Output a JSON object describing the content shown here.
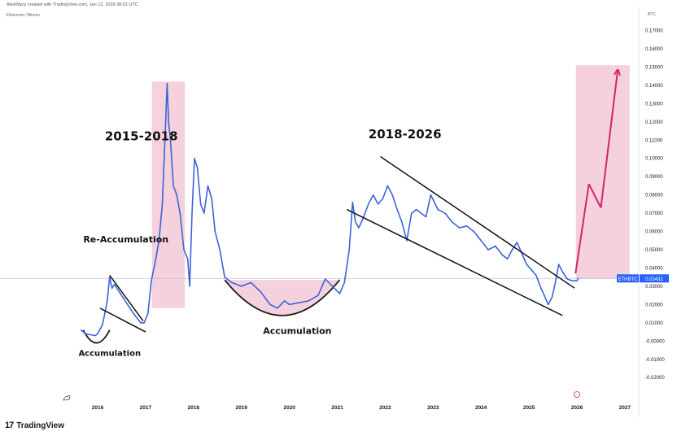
{
  "header": {
    "credit": "AlexWacy created with TradingView.com, Jan 12, 2026 08:01 UTC",
    "symbol": "Ethereum / Bitcoin",
    "currency": "BTC"
  },
  "footer": {
    "brand": "TradingView",
    "logo_icon": "tradingview-logo-icon"
  },
  "chart_data": {
    "type": "line",
    "title": "",
    "xlabel": "",
    "ylabel": "",
    "xlim": [
      2015.4,
      2027.3
    ],
    "ylim": [
      -0.02,
      0.18
    ],
    "grid": false,
    "x_ticks": [
      "2016",
      "2017",
      "2018",
      "2019",
      "2020",
      "2021",
      "2022",
      "2023",
      "2024",
      "2025",
      "2026",
      "2027"
    ],
    "y_ticks": [
      "0.17000",
      "0.16000",
      "0.15000",
      "0.14000",
      "0.13000",
      "0.12000",
      "0.11000",
      "0.10000",
      "0.09000",
      "0.08000",
      "0.07000",
      "0.06000",
      "0.05000",
      "0.04000",
      "0.03000",
      "0.02000",
      "0.01000",
      "-0.00000",
      "-0.01000",
      "-0.02000"
    ],
    "series": [
      {
        "color": "#3c63d8",
        "x": [
          2015.65,
          2015.75,
          2015.85,
          2015.95,
          2016.0,
          2016.1,
          2016.15,
          2016.2,
          2016.25,
          2016.3,
          2016.35,
          2016.45,
          2016.6,
          2016.75,
          2016.9,
          2016.97,
          2017.05,
          2017.12,
          2017.2,
          2017.28,
          2017.35,
          2017.42,
          2017.45,
          2017.48,
          2017.52,
          2017.58,
          2017.65,
          2017.72,
          2017.8,
          2017.88,
          2017.92,
          2017.97,
          2018.02,
          2018.08,
          2018.15,
          2018.22,
          2018.3,
          2018.38,
          2018.45,
          2018.55,
          2018.65,
          2018.8,
          2019.0,
          2019.2,
          2019.4,
          2019.6,
          2019.75,
          2019.9,
          2020.0,
          2020.2,
          2020.4,
          2020.6,
          2020.75,
          2020.9,
          2021.05,
          2021.15,
          2021.25,
          2021.32,
          2021.38,
          2021.45,
          2021.55,
          2021.65,
          2021.75,
          2021.85,
          2021.95,
          2022.05,
          2022.15,
          2022.25,
          2022.35,
          2022.45,
          2022.55,
          2022.65,
          2022.75,
          2022.85,
          2022.95,
          2023.1,
          2023.25,
          2023.4,
          2023.55,
          2023.7,
          2023.85,
          2024.0,
          2024.15,
          2024.3,
          2024.45,
          2024.55,
          2024.65,
          2024.75,
          2024.85,
          2024.95,
          2025.05,
          2025.15,
          2025.25,
          2025.32,
          2025.4,
          2025.48,
          2025.55,
          2025.62,
          2025.7,
          2025.8,
          2025.9,
          2026.0,
          2026.03
        ],
        "y": [
          0.006,
          0.004,
          0.0035,
          0.003,
          0.004,
          0.009,
          0.015,
          0.022,
          0.035,
          0.029,
          0.031,
          0.027,
          0.021,
          0.015,
          0.01,
          0.01,
          0.015,
          0.033,
          0.043,
          0.055,
          0.075,
          0.12,
          0.141,
          0.12,
          0.11,
          0.085,
          0.08,
          0.07,
          0.05,
          0.045,
          0.03,
          0.07,
          0.1,
          0.095,
          0.075,
          0.07,
          0.085,
          0.078,
          0.06,
          0.05,
          0.035,
          0.032,
          0.03,
          0.032,
          0.027,
          0.02,
          0.018,
          0.022,
          0.02,
          0.021,
          0.022,
          0.025,
          0.034,
          0.03,
          0.026,
          0.032,
          0.05,
          0.076,
          0.065,
          0.062,
          0.068,
          0.075,
          0.08,
          0.075,
          0.078,
          0.085,
          0.08,
          0.072,
          0.065,
          0.055,
          0.07,
          0.072,
          0.07,
          0.068,
          0.08,
          0.072,
          0.07,
          0.065,
          0.062,
          0.063,
          0.06,
          0.055,
          0.05,
          0.052,
          0.047,
          0.045,
          0.05,
          0.054,
          0.048,
          0.042,
          0.039,
          0.036,
          0.029,
          0.025,
          0.02,
          0.024,
          0.032,
          0.042,
          0.038,
          0.034,
          0.033,
          0.033,
          0.0343
        ]
      }
    ],
    "price_line": {
      "value": 0.03431,
      "label": "ETHBTC",
      "value_label": "0.03431",
      "color": "#2962ff"
    },
    "shaded_regions": [
      {
        "x0": 2017.13,
        "x1": 2017.82,
        "y0": 0.018,
        "y1": 0.142,
        "color": "#f3c6d6"
      },
      {
        "x0": 2025.98,
        "x1": 2027.1,
        "y0": 0.034,
        "y1": 0.151,
        "color": "#f3c6d6"
      }
    ],
    "annotations": [
      {
        "text": "2015-2018",
        "x": 2016.15,
        "y": 0.11,
        "size": 15
      },
      {
        "text": "Re-Accumulation",
        "x": 2015.7,
        "y": 0.054,
        "size": 11
      },
      {
        "text": "Accumulation",
        "x": 2015.6,
        "y": -0.008,
        "size": 10
      },
      {
        "text": "2018-2026",
        "x": 2021.65,
        "y": 0.111,
        "size": 15
      },
      {
        "text": "Accumulation",
        "x": 2019.45,
        "y": 0.004,
        "size": 11
      }
    ],
    "lines": [
      {
        "from": [
          2016.25,
          0.036
        ],
        "to": [
          2016.95,
          0.011
        ],
        "color": "#111111"
      },
      {
        "from": [
          2016.05,
          0.018
        ],
        "to": [
          2017.0,
          0.005
        ],
        "color": "#111111"
      },
      {
        "from": [
          2021.9,
          0.101
        ],
        "to": [
          2025.95,
          0.029
        ],
        "color": "#111111"
      },
      {
        "from": [
          2021.2,
          0.072
        ],
        "to": [
          2025.7,
          0.014
        ],
        "color": "#111111"
      },
      {
        "from": [
          2025.97,
          0.037
        ],
        "to": [
          2026.25,
          0.086
        ],
        "color": "#d0256b"
      },
      {
        "from": [
          2026.25,
          0.086
        ],
        "to": [
          2026.5,
          0.073
        ],
        "color": "#d0256b"
      },
      {
        "from": [
          2026.5,
          0.073
        ],
        "to": [
          2026.85,
          0.148
        ],
        "color": "#d0256b",
        "arrow": true
      }
    ],
    "arcs": [
      {
        "x0": 2015.7,
        "x1": 2016.25,
        "y_top": 0.006,
        "y_bottom": -0.001,
        "fill": false
      },
      {
        "x0": 2018.65,
        "x1": 2021.05,
        "y_top": 0.0335,
        "y_bottom": 0.014,
        "fill": true,
        "fill_color": "#f3c6d6"
      }
    ]
  }
}
